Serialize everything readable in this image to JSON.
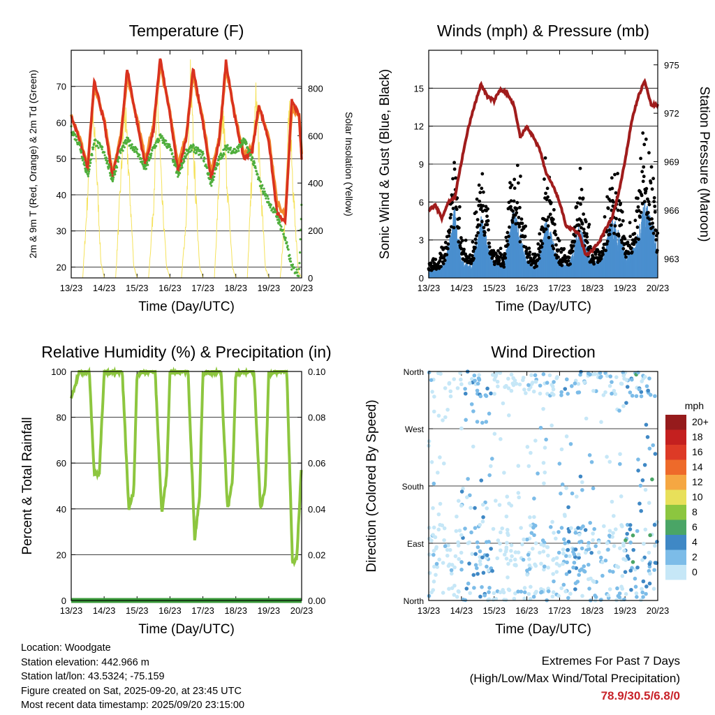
{
  "time_ticks": [
    "13/23",
    "14/23",
    "15/23",
    "16/23",
    "17/23",
    "18/23",
    "19/23",
    "20/23"
  ],
  "x_label": "Time (Day/UTC)",
  "chart_data": [
    {
      "type": "line",
      "title": "Temperature (F)",
      "ylabel": "2m & 9m T (Red, Orange) & 2m Td (Green)",
      "y2label": "Solar Insolation (Yellow)",
      "ylim": [
        17,
        80
      ],
      "y2lim": [
        0,
        960
      ],
      "yticks": [
        20,
        30,
        40,
        50,
        60,
        70
      ],
      "y2ticks": [
        0,
        200,
        400,
        600,
        800
      ],
      "colors": {
        "t2": "#d9321f",
        "t9": "#f28a2e",
        "td": "#4fae3c",
        "solar": "#f5e25a"
      },
      "series": [
        {
          "name": "2m T",
          "x": [
            0,
            0.25,
            0.5,
            0.7,
            1.0,
            1.25,
            1.5,
            1.7,
            2.0,
            2.25,
            2.5,
            2.7,
            3.0,
            3.25,
            3.5,
            3.7,
            4.0,
            4.25,
            4.5,
            4.7,
            5.0,
            5.25,
            5.5,
            5.7,
            6.0,
            6.25,
            6.5,
            6.7,
            6.92,
            7.0
          ],
          "y": [
            62,
            55,
            47,
            72,
            60,
            45,
            55,
            75,
            60,
            48,
            58,
            78,
            62,
            46,
            56,
            75,
            60,
            44,
            55,
            77,
            60,
            50,
            52,
            65,
            55,
            35,
            32,
            66,
            62,
            50
          ]
        },
        {
          "name": "9m T",
          "x": [
            0,
            0.25,
            0.5,
            0.7,
            1.0,
            1.25,
            1.5,
            1.7,
            2.0,
            2.25,
            2.5,
            2.7,
            3.0,
            3.25,
            3.5,
            3.7,
            4.0,
            4.25,
            4.5,
            4.7,
            5.0,
            5.25,
            5.5,
            5.7,
            6.0,
            6.25,
            6.5,
            6.7,
            6.92,
            7.0
          ],
          "y": [
            62,
            56,
            48,
            70,
            61,
            46,
            56,
            73,
            61,
            50,
            59,
            76,
            63,
            48,
            57,
            73,
            61,
            46,
            56,
            75,
            61,
            51,
            53,
            64,
            56,
            38,
            34,
            64,
            62,
            51
          ]
        },
        {
          "name": "2m Td",
          "x": [
            0,
            0.25,
            0.5,
            0.7,
            1.0,
            1.25,
            1.5,
            1.7,
            2.0,
            2.25,
            2.5,
            2.7,
            3.0,
            3.25,
            3.5,
            3.7,
            4.0,
            4.25,
            4.5,
            4.7,
            5.0,
            5.25,
            5.5,
            5.7,
            6.0,
            6.25,
            6.5,
            6.7,
            6.92,
            7.0
          ],
          "y": [
            58,
            54,
            45,
            55,
            52,
            44,
            52,
            55,
            52,
            47,
            53,
            56,
            53,
            45,
            52,
            53,
            51,
            43,
            50,
            53,
            52,
            55,
            50,
            44,
            38,
            34,
            28,
            20,
            18,
            38
          ]
        },
        {
          "name": "Solar Insolation",
          "x": [
            0,
            0.35,
            0.5,
            0.62,
            0.75,
            0.9,
            1.0,
            1.35,
            1.5,
            1.62,
            1.75,
            1.9,
            2.0,
            2.35,
            2.5,
            2.62,
            2.75,
            2.9,
            3.0,
            3.35,
            3.5,
            3.62,
            3.75,
            3.9,
            4.0,
            4.35,
            4.5,
            4.62,
            4.75,
            4.9,
            5.0,
            5.35,
            5.5,
            5.62,
            5.75,
            5.9,
            6.0,
            6.35,
            6.5,
            6.62,
            6.75,
            6.9,
            7.0
          ],
          "y": [
            0,
            0,
            400,
            800,
            600,
            80,
            0,
            0,
            450,
            820,
            500,
            60,
            0,
            0,
            350,
            880,
            400,
            50,
            0,
            0,
            300,
            940,
            500,
            60,
            0,
            0,
            500,
            760,
            420,
            50,
            0,
            0,
            550,
            860,
            450,
            50,
            0,
            0,
            300,
            800,
            400,
            30,
            0
          ]
        }
      ]
    },
    {
      "type": "scatter",
      "title": "Winds (mph) & Pressure (mb)",
      "ylabel": "Sonic Wind & Gust (Blue, Black)",
      "y2label": "Station Pressure (Maroon)",
      "ylim": [
        0,
        18
      ],
      "y2lim": [
        961.8,
        975.9
      ],
      "yticks": [
        0,
        3,
        6,
        9,
        12,
        15
      ],
      "y2ticks": [
        963,
        966,
        969,
        972,
        975
      ],
      "colors": {
        "wind": "#4a8fcf",
        "gust": "#000000",
        "pressure": "#a01c1c"
      },
      "series": [
        {
          "name": "Pressure",
          "x": [
            0,
            0.2,
            0.4,
            0.6,
            0.8,
            1.0,
            1.2,
            1.4,
            1.6,
            1.8,
            2.0,
            2.2,
            2.4,
            2.6,
            2.8,
            3.0,
            3.2,
            3.4,
            3.6,
            3.8,
            4.0,
            4.2,
            4.4,
            4.6,
            4.8,
            5.0,
            5.2,
            5.4,
            5.6,
            5.8,
            6.0,
            6.2,
            6.4,
            6.6,
            6.8,
            7.0
          ],
          "y": [
            966,
            966.3,
            965.5,
            966.5,
            966.8,
            969,
            971,
            972.5,
            973.8,
            973,
            972.8,
            973.5,
            973.2,
            972.5,
            970.5,
            971.2,
            970.5,
            969.7,
            968.2,
            967.5,
            966.5,
            965,
            964.8,
            964.5,
            963.2,
            963.5,
            964,
            964.8,
            965.5,
            967,
            969,
            971.5,
            973,
            974,
            972.5,
            972.5
          ]
        },
        {
          "name": "Wind Mean",
          "x": [
            0,
            0.5,
            0.8,
            1.0,
            1.3,
            1.6,
            1.9,
            2.0,
            2.3,
            2.6,
            2.9,
            3.0,
            3.3,
            3.6,
            3.9,
            4.0,
            4.3,
            4.6,
            4.9,
            5.0,
            5.3,
            5.6,
            5.9,
            6.0,
            6.3,
            6.6,
            6.9,
            7.0
          ],
          "y": [
            0.5,
            1.0,
            4.5,
            1.2,
            0.8,
            4,
            1.5,
            1.0,
            0.9,
            4.5,
            2,
            1.2,
            0.8,
            4,
            1.5,
            1.0,
            0.9,
            3.5,
            1.5,
            1.0,
            1.2,
            4,
            2.5,
            1.5,
            2.0,
            5,
            3,
            1.5
          ]
        }
      ]
    },
    {
      "type": "line",
      "title": "Relative Humidity (%) & Precipitation (in)",
      "ylabel": "Percent & Total Rainfall",
      "ylim": [
        0,
        100
      ],
      "y2lim": [
        0,
        0.1
      ],
      "yticks": [
        0,
        20,
        40,
        60,
        80,
        100
      ],
      "y2ticks": [
        "0.00",
        "0.02",
        "0.04",
        "0.06",
        "0.08",
        "0.10"
      ],
      "colors": {
        "rh": "#8dc63f",
        "precip": "#3a9a3a"
      },
      "series": [
        {
          "name": "Relative Humidity",
          "x": [
            0,
            0.25,
            0.45,
            0.55,
            0.7,
            0.85,
            1.0,
            1.25,
            1.45,
            1.55,
            1.75,
            1.9,
            2.0,
            2.25,
            2.45,
            2.55,
            2.75,
            2.9,
            3.0,
            3.25,
            3.45,
            3.55,
            3.75,
            3.9,
            4.0,
            4.25,
            4.45,
            4.55,
            4.75,
            4.9,
            5.0,
            5.25,
            5.45,
            5.55,
            5.75,
            5.9,
            6.0,
            6.25,
            6.45,
            6.55,
            6.72,
            6.85,
            7.0
          ],
          "y": [
            88,
            100,
            100,
            100,
            55,
            55,
            99,
            100,
            100,
            100,
            40,
            48,
            99,
            100,
            100,
            100,
            38,
            55,
            99,
            100,
            100,
            100,
            27,
            45,
            99,
            100,
            100,
            100,
            40,
            52,
            99,
            100,
            100,
            100,
            40,
            50,
            99,
            100,
            100,
            100,
            17,
            18,
            60
          ]
        },
        {
          "name": "Total Precipitation",
          "x": [
            0,
            7.0
          ],
          "y": [
            0,
            0
          ]
        }
      ]
    },
    {
      "type": "scatter",
      "title": "Wind Direction",
      "ylabel": "Direction (Colored By Speed)",
      "yticks": [
        "North",
        "East",
        "South",
        "West",
        "North"
      ],
      "ylim": [
        0,
        360
      ],
      "legend_title": "mph",
      "legend_labels": [
        "0",
        "2",
        "4",
        "6",
        "8",
        "10",
        "12",
        "14",
        "16",
        "18",
        "20+"
      ],
      "legend_colors": [
        "#c6e7f7",
        "#7cbce8",
        "#3f88c5",
        "#4aa566",
        "#8cc63f",
        "#e8e05a",
        "#f5a742",
        "#ee6a2a",
        "#dd3a26",
        "#c4201f",
        "#961b1c"
      ],
      "speed_by_day_hint": [
        1.5,
        3.5,
        1.5,
        2.0,
        3.5,
        2.0,
        4.5,
        3.0
      ]
    }
  ],
  "footer": {
    "location": "Location: Woodgate",
    "elevation": "Station elevation: 442.966 m",
    "latlon": "Station lat/lon: 43.5324; -75.159",
    "created": "Figure created on Sat, 2025-09-20, at 23:45 UTC",
    "recent": "Most recent data timestamp: 2025/09/20 23:15:00",
    "extremes_title": "Extremes For Past 7 Days",
    "extremes_sub": "(High/Low/Max Wind/Total Precipitation)",
    "extremes_values": "78.9/30.5/6.8/0"
  }
}
